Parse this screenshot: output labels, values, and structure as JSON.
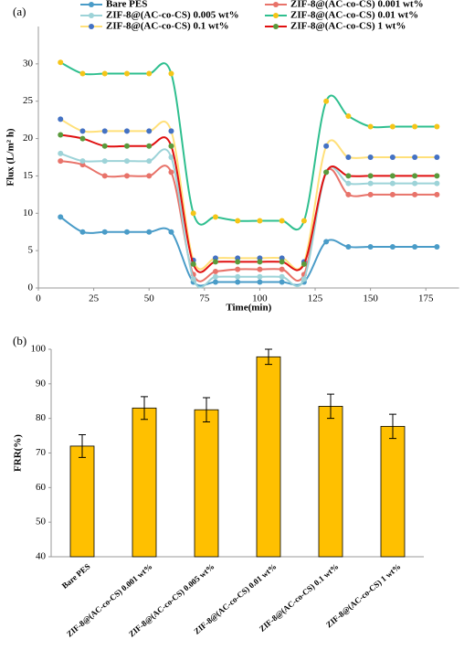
{
  "chart_data": [
    {
      "type": "line",
      "panel_label": "(a)",
      "x_label": "Time(min)",
      "y_label": "Flux (L/m² h)",
      "x": [
        10,
        20,
        30,
        40,
        50,
        60,
        70,
        80,
        90,
        100,
        110,
        120,
        130,
        140,
        150,
        160,
        170,
        180
      ],
      "xlim": [
        0,
        190
      ],
      "xticks": [
        0,
        25,
        50,
        75,
        100,
        125,
        150,
        175
      ],
      "ylim": [
        0,
        35
      ],
      "yticks": [
        0,
        5,
        10,
        15,
        20,
        25,
        30
      ],
      "series": [
        {
          "name": "Bare PES",
          "color": "#4a9cc8",
          "marker_color": "#4a9cc8",
          "values": [
            9.5,
            7.5,
            7.5,
            7.5,
            7.5,
            7.5,
            0.8,
            0.8,
            0.8,
            0.8,
            0.8,
            0.8,
            6.2,
            5.5,
            5.5,
            5.5,
            5.5,
            5.5
          ]
        },
        {
          "name": "ZIF-8@(AC-co-CS) 0.001 wt%",
          "color": "#e8736a",
          "marker_color": "#e8736a",
          "values": [
            17,
            16.5,
            15,
            15,
            15,
            15.5,
            1.8,
            2.2,
            2.5,
            2.5,
            2.5,
            1.8,
            15.5,
            12.5,
            12.5,
            12.5,
            12.5,
            12.5
          ]
        },
        {
          "name": "ZIF-8@(AC-co-CS) 0.005 wt%",
          "color": "#9dd3d8",
          "marker_color": "#9dd3d8",
          "values": [
            18,
            17,
            17,
            17,
            17,
            17.5,
            1.2,
            1.5,
            1.5,
            1.5,
            1.5,
            1.2,
            15.5,
            14,
            14,
            14,
            14,
            14
          ]
        },
        {
          "name": "ZIF-8@(AC-co-CS) 0.01 wt%",
          "color": "#2fbf8f",
          "marker_color": "#f5c518",
          "values": [
            30.2,
            28.7,
            28.7,
            28.7,
            28.7,
            28.7,
            10,
            9.5,
            9,
            9,
            9,
            9,
            25,
            23,
            21.6,
            21.6,
            21.6,
            21.6
          ]
        },
        {
          "name": "ZIF-8@(AC-co-CS) 0.1 wt%",
          "color": "#ffe07a",
          "marker_color": "#4472c4",
          "values": [
            22.6,
            21,
            21,
            21,
            21,
            21,
            3.7,
            4,
            4,
            4,
            4,
            3.5,
            19,
            17.5,
            17.5,
            17.5,
            17.5,
            17.5
          ]
        },
        {
          "name": "ZIF-8@(AC-co-CS) 1 wt%",
          "color": "#e01010",
          "marker_color": "#5a9a3c",
          "values": [
            20.5,
            20,
            19,
            19,
            19,
            19,
            3.2,
            3.5,
            3.5,
            3.5,
            3.5,
            3.2,
            15.5,
            15,
            15,
            15,
            15,
            15
          ]
        }
      ]
    },
    {
      "type": "bar",
      "panel_label": "(b)",
      "y_label": "FRR(%)",
      "categories": [
        "Bare PES",
        "ZIF-8@(AC-co-CS) 0.001 wt%",
        "ZIF-8@(AC-co-CS) 0.005 wt%",
        "ZIF-8@(AC-co-CS) 0.01 wt%",
        "ZIF-8@(AC-co-CS) 0.1 wt%",
        "ZIF-8@(AC-co-CS) 1 wt%"
      ],
      "values": [
        72,
        83,
        82.5,
        97.8,
        83.5,
        77.7
      ],
      "errors": [
        3.3,
        3.3,
        3.5,
        2.2,
        3.5,
        3.5
      ],
      "color": "#ffc000",
      "ylim": [
        40,
        100
      ],
      "yticks": [
        40,
        50,
        60,
        70,
        80,
        90,
        100
      ]
    }
  ]
}
